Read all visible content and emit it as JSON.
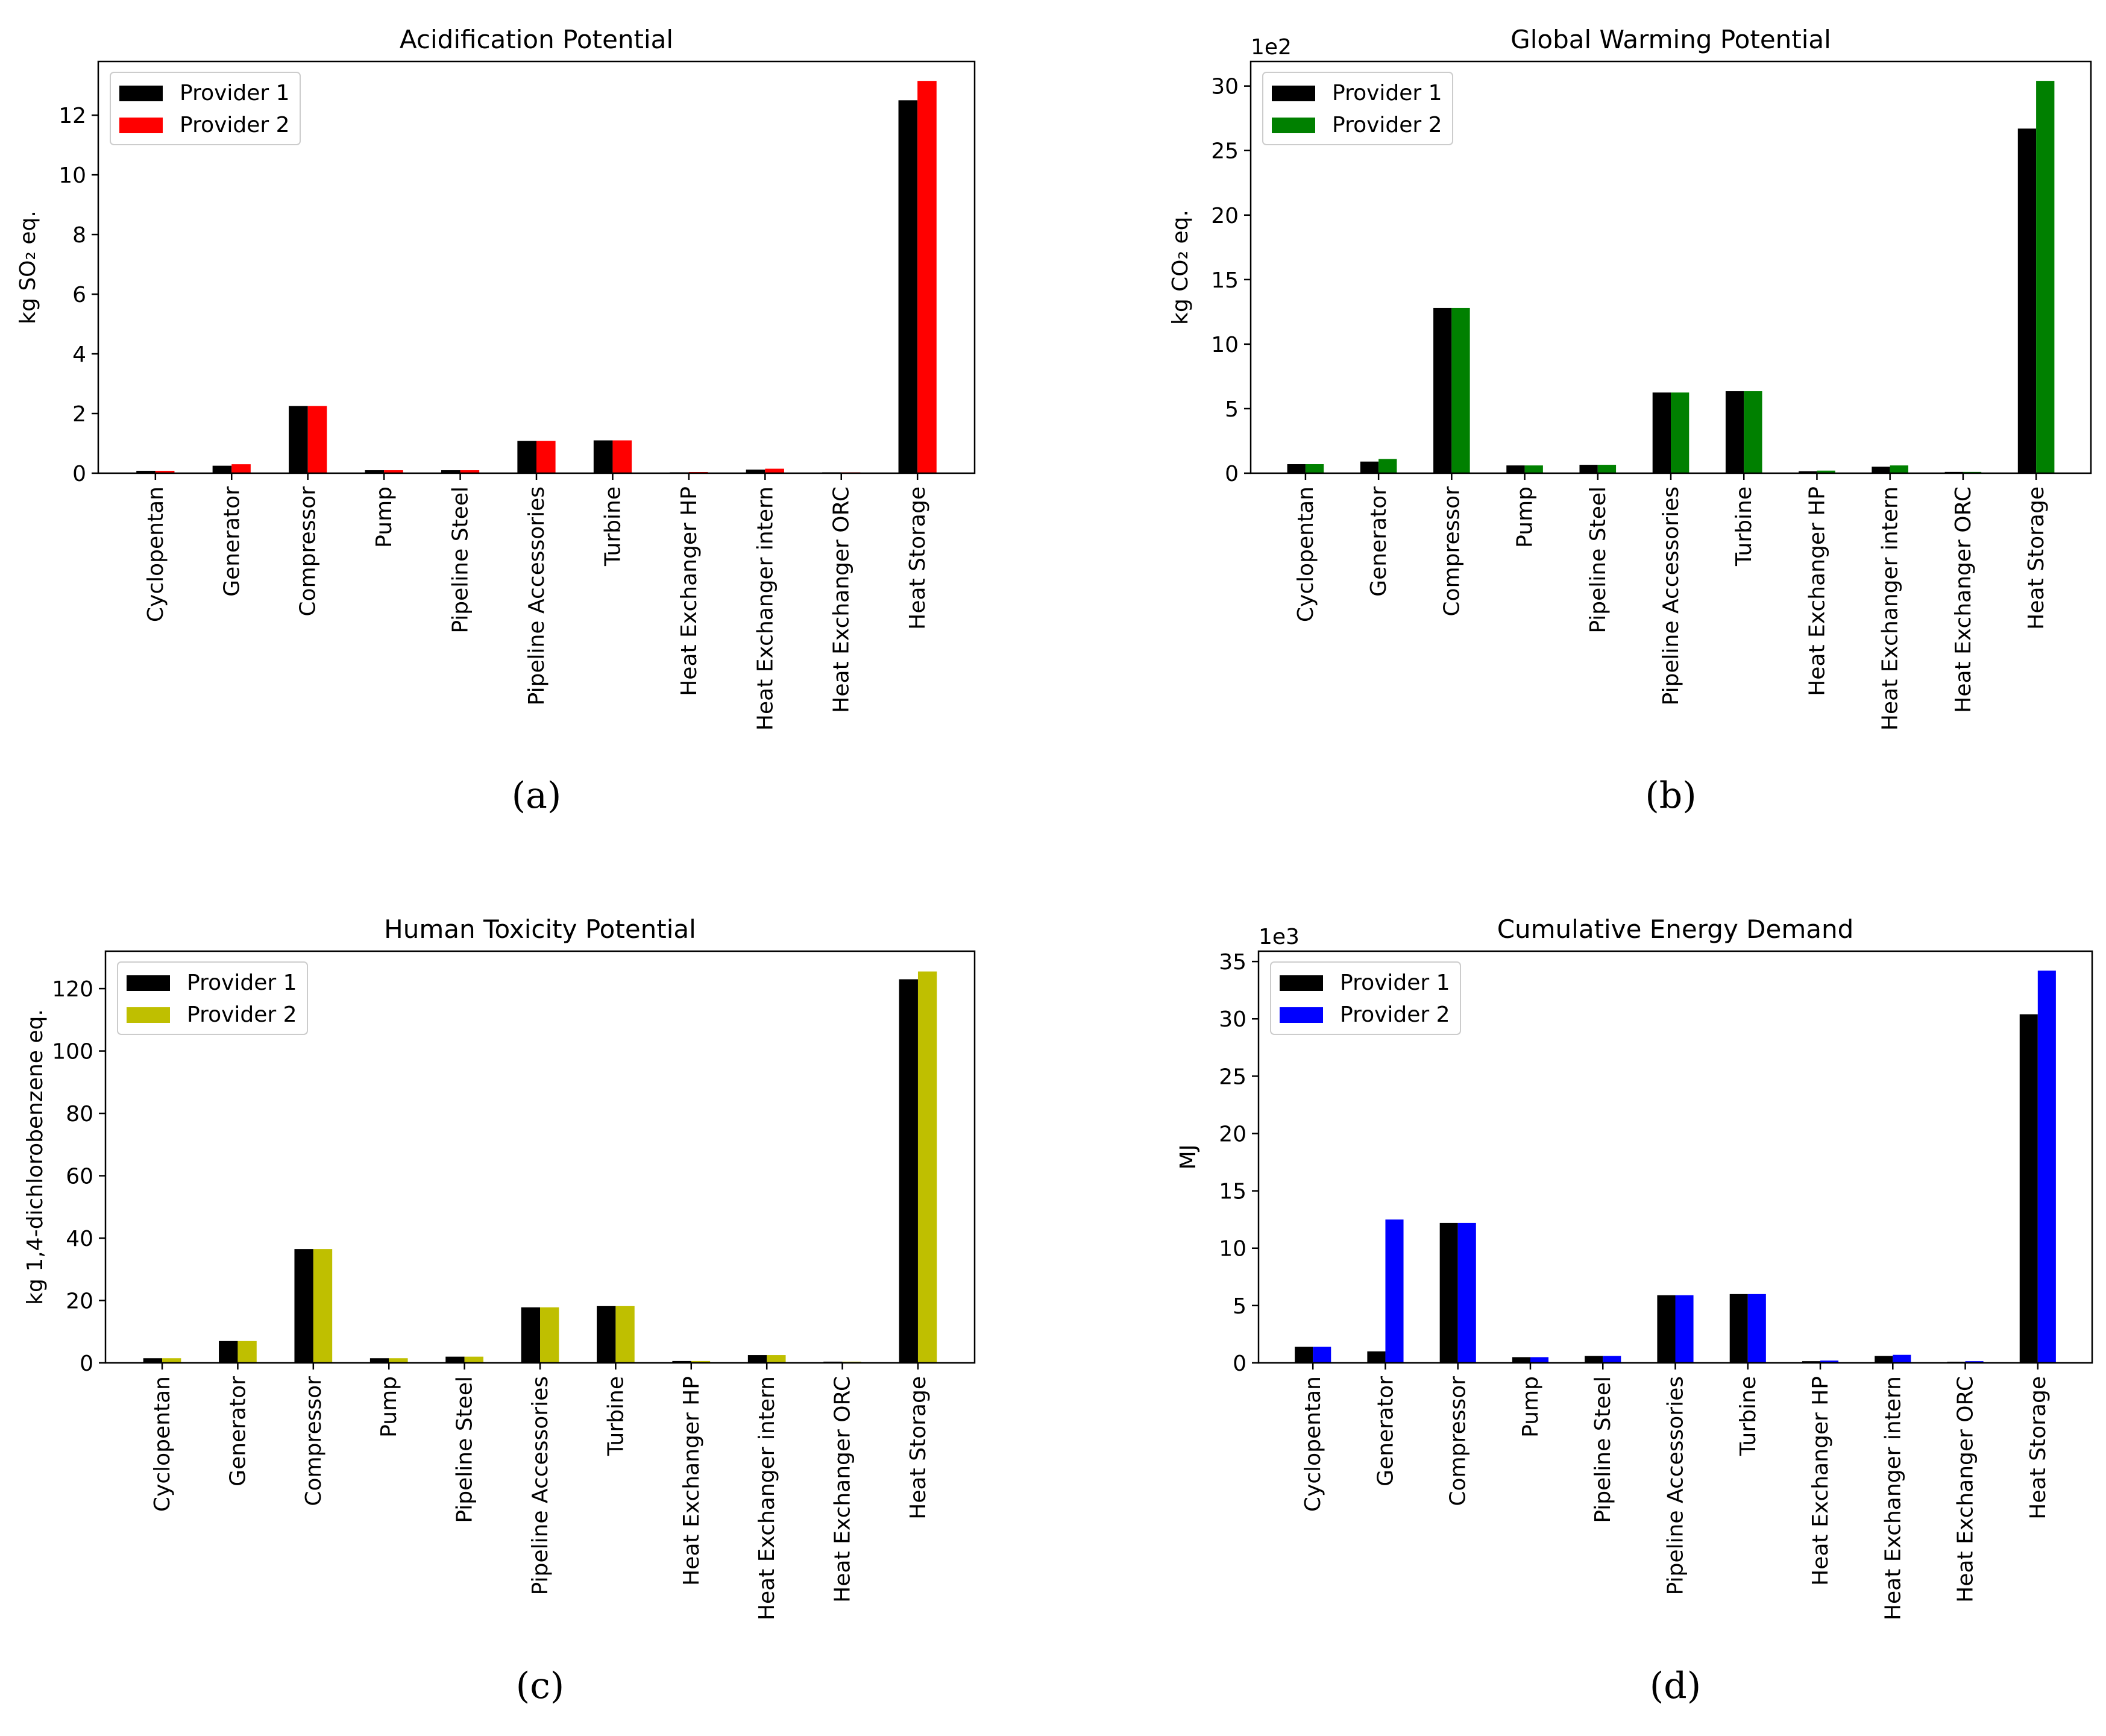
{
  "chart_data": [
    {
      "type": "bar",
      "title": "Acidification Potential",
      "caption": "(a)",
      "ylabel": "kg SO₂ eq.",
      "xlabel": "",
      "offset_label": "",
      "ylim": [
        0,
        13.8
      ],
      "yticks": [
        0,
        2,
        4,
        6,
        8,
        10,
        12
      ],
      "legend_position": "top-left",
      "categories": [
        "Cyclopentan",
        "Generator",
        "Compressor",
        "Pump",
        "Pipeline Steel",
        "Pipeline Accessories",
        "Turbine",
        "Heat Exchanger HP",
        "Heat Exchanger intern",
        "Heat Exchanger ORC",
        "Heat Storage"
      ],
      "series": [
        {
          "name": "Provider 1",
          "color": "#000000",
          "values": [
            0.08,
            0.25,
            2.25,
            0.1,
            0.1,
            1.08,
            1.1,
            0.03,
            0.12,
            0.03,
            12.5
          ]
        },
        {
          "name": "Provider 2",
          "color": "#ff0000",
          "values": [
            0.08,
            0.3,
            2.25,
            0.1,
            0.1,
            1.08,
            1.1,
            0.04,
            0.15,
            0.03,
            13.15
          ]
        }
      ]
    },
    {
      "type": "bar",
      "title": "Global Warming Potential",
      "caption": "(b)",
      "ylabel": "kg CO₂ eq.",
      "xlabel": "",
      "offset_label": "1e2",
      "ylim": [
        0,
        31.9
      ],
      "yticks": [
        0,
        5,
        10,
        15,
        20,
        25,
        30
      ],
      "legend_position": "top-left",
      "categories": [
        "Cyclopentan",
        "Generator",
        "Compressor",
        "Pump",
        "Pipeline Steel",
        "Pipeline Accessories",
        "Turbine",
        "Heat Exchanger HP",
        "Heat Exchanger intern",
        "Heat Exchanger ORC",
        "Heat Storage"
      ],
      "series": [
        {
          "name": "Provider 1",
          "color": "#000000",
          "values": [
            0.7,
            0.9,
            12.8,
            0.6,
            0.65,
            6.25,
            6.35,
            0.15,
            0.5,
            0.1,
            26.7
          ]
        },
        {
          "name": "Provider 2",
          "color": "#008000",
          "values": [
            0.7,
            1.1,
            12.8,
            0.6,
            0.65,
            6.25,
            6.35,
            0.2,
            0.6,
            0.1,
            30.4
          ]
        }
      ]
    },
    {
      "type": "bar",
      "title": "Human Toxicity Potential",
      "caption": "(c)",
      "ylabel": "kg 1,4-dichlorobenzene eq.",
      "xlabel": "",
      "offset_label": "",
      "ylim": [
        0,
        132
      ],
      "yticks": [
        0,
        20,
        40,
        60,
        80,
        100,
        120
      ],
      "legend_position": "top-left",
      "categories": [
        "Cyclopentan",
        "Generator",
        "Compressor",
        "Pump",
        "Pipeline Steel",
        "Pipeline Accessories",
        "Turbine",
        "Heat Exchanger HP",
        "Heat Exchanger intern",
        "Heat Exchanger ORC",
        "Heat Storage"
      ],
      "series": [
        {
          "name": "Provider 1",
          "color": "#000000",
          "values": [
            1.5,
            7,
            36.5,
            1.5,
            2,
            17.8,
            18.2,
            0.6,
            2.5,
            0.4,
            123
          ]
        },
        {
          "name": "Provider 2",
          "color": "#bfbf00",
          "values": [
            1.5,
            7,
            36.5,
            1.5,
            2,
            17.8,
            18.2,
            0.6,
            2.5,
            0.4,
            125.5
          ]
        }
      ]
    },
    {
      "type": "bar",
      "title": "Cumulative Energy Demand",
      "caption": "(d)",
      "ylabel": "MJ",
      "xlabel": "",
      "offset_label": "1e3",
      "ylim": [
        0,
        35.9
      ],
      "yticks": [
        0,
        5,
        10,
        15,
        20,
        25,
        30,
        35
      ],
      "legend_position": "top-left",
      "categories": [
        "Cyclopentan",
        "Generator",
        "Compressor",
        "Pump",
        "Pipeline Steel",
        "Pipeline Accessories",
        "Turbine",
        "Heat Exchanger HP",
        "Heat Exchanger intern",
        "Heat Exchanger ORC",
        "Heat Storage"
      ],
      "series": [
        {
          "name": "Provider 1",
          "color": "#000000",
          "values": [
            1.4,
            1.0,
            12.2,
            0.5,
            0.6,
            5.9,
            6.0,
            0.15,
            0.6,
            0.1,
            30.4
          ]
        },
        {
          "name": "Provider 2",
          "color": "#0000ff",
          "values": [
            1.4,
            12.5,
            12.2,
            0.5,
            0.6,
            5.9,
            6.0,
            0.2,
            0.7,
            0.15,
            34.2
          ]
        }
      ]
    }
  ]
}
